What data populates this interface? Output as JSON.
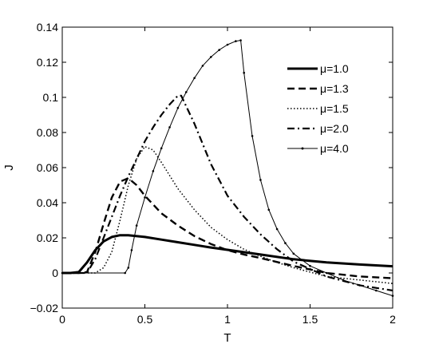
{
  "chart_data": {
    "type": "line",
    "title": "",
    "xlabel": "T",
    "ylabel": "J",
    "xlim": [
      0,
      2
    ],
    "ylim": [
      -0.02,
      0.14
    ],
    "x_ticks": [
      0,
      0.5,
      1,
      1.5,
      2
    ],
    "x_tick_labels": [
      "0",
      "0.5",
      "1",
      "1.5",
      "2"
    ],
    "y_ticks": [
      -0.02,
      0,
      0.02,
      0.04,
      0.06,
      0.08,
      0.1,
      0.12,
      0.14
    ],
    "y_tick_labels": [
      "−0.02",
      "0",
      "0.02",
      "0.04",
      "0.06",
      "0.08",
      "0.1",
      "0.12",
      "0.14"
    ],
    "grid": false,
    "legend": "top-right",
    "series": [
      {
        "name": "μ=1.0",
        "style": "solid-thick",
        "color": "#000000",
        "x": [
          0,
          0.05,
          0.1,
          0.15,
          0.2,
          0.25,
          0.3,
          0.35,
          0.4,
          0.5,
          0.6,
          0.7,
          0.8,
          0.9,
          1.0,
          1.2,
          1.4,
          1.6,
          1.8,
          2.0
        ],
        "y": [
          0,
          0,
          0.0005,
          0.006,
          0.013,
          0.018,
          0.0205,
          0.0215,
          0.0215,
          0.0205,
          0.019,
          0.0175,
          0.016,
          0.0145,
          0.0132,
          0.0105,
          0.0078,
          0.006,
          0.0048,
          0.0038
        ]
      },
      {
        "name": "μ=1.3",
        "style": "dashed",
        "color": "#000000",
        "x": [
          0,
          0.1,
          0.15,
          0.2,
          0.25,
          0.3,
          0.35,
          0.4,
          0.45,
          0.5,
          0.6,
          0.7,
          0.8,
          0.9,
          1.0,
          1.1,
          1.2,
          1.4,
          1.6,
          1.8,
          2.0
        ],
        "y": [
          0,
          0,
          0.0005,
          0.012,
          0.028,
          0.043,
          0.052,
          0.054,
          0.05,
          0.044,
          0.034,
          0.027,
          0.021,
          0.0165,
          0.013,
          0.0105,
          0.0085,
          0.004,
          0,
          -0.002,
          -0.003
        ]
      },
      {
        "name": "μ=1.5",
        "style": "dotted",
        "color": "#000000",
        "x": [
          0,
          0.2,
          0.25,
          0.3,
          0.35,
          0.4,
          0.45,
          0.5,
          0.55,
          0.6,
          0.7,
          0.8,
          0.9,
          1.0,
          1.1,
          1.2,
          1.3,
          1.4,
          1.6,
          1.8,
          2.0
        ],
        "y": [
          0,
          0,
          0.003,
          0.012,
          0.03,
          0.05,
          0.065,
          0.072,
          0.07,
          0.063,
          0.048,
          0.036,
          0.026,
          0.019,
          0.0135,
          0.0095,
          0.006,
          0.003,
          -0.002,
          -0.004,
          -0.006
        ]
      },
      {
        "name": "μ=2.0",
        "style": "dash-dot",
        "color": "#000000",
        "x": [
          0,
          0.15,
          0.2,
          0.25,
          0.3,
          0.35,
          0.4,
          0.45,
          0.5,
          0.55,
          0.6,
          0.65,
          0.7,
          0.72,
          0.8,
          0.9,
          1.0,
          1.1,
          1.2,
          1.3,
          1.4,
          1.6,
          1.8,
          2.0
        ],
        "y": [
          0,
          0,
          0.008,
          0.02,
          0.032,
          0.044,
          0.055,
          0.065,
          0.075,
          0.083,
          0.09,
          0.096,
          0.101,
          0.101,
          0.085,
          0.062,
          0.044,
          0.032,
          0.022,
          0.0135,
          0.0065,
          -0.002,
          -0.007,
          -0.01
        ]
      },
      {
        "name": "μ=4.0",
        "style": "solid-thin-points",
        "color": "#000000",
        "x": [
          0,
          0.38,
          0.4,
          0.42,
          0.45,
          0.5,
          0.55,
          0.6,
          0.65,
          0.7,
          0.75,
          0.8,
          0.85,
          0.9,
          0.95,
          1.0,
          1.05,
          1.08,
          1.1,
          1.15,
          1.2,
          1.25,
          1.3,
          1.35,
          1.4,
          1.5,
          1.6,
          1.7,
          1.8,
          1.9,
          2.0
        ],
        "y": [
          0,
          0,
          0.003,
          0.013,
          0.027,
          0.043,
          0.058,
          0.071,
          0.083,
          0.094,
          0.103,
          0.111,
          0.118,
          0.123,
          0.127,
          0.13,
          0.132,
          0.1325,
          0.114,
          0.078,
          0.053,
          0.036,
          0.025,
          0.017,
          0.011,
          0.004,
          0,
          -0.004,
          -0.007,
          -0.01,
          -0.013
        ]
      }
    ]
  }
}
